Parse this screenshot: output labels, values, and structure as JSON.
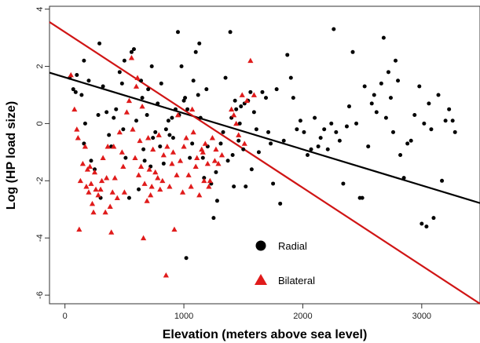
{
  "chart_data": {
    "type": "scatter",
    "xlabel": "Elevation (meters above sea level)",
    "ylabel": "Log (HP load size)",
    "xlim": [
      -130,
      3490
    ],
    "ylim": [
      -6.3,
      4.1
    ],
    "x_ticks": [
      0,
      1000,
      2000,
      3000
    ],
    "y_ticks": [
      -6,
      -4,
      -2,
      0,
      2,
      4
    ],
    "grid": false,
    "legend_position": "bottom-center",
    "series": [
      {
        "name": "Radial",
        "marker": "circle",
        "color": "#000000",
        "points": [
          [
            40,
            1.6
          ],
          [
            70,
            1.2
          ],
          [
            100,
            1.7
          ],
          [
            90,
            1.1
          ],
          [
            160,
            2.2
          ],
          [
            140,
            1.0
          ],
          [
            200,
            1.5
          ],
          [
            170,
            0.0
          ],
          [
            160,
            -0.7
          ],
          [
            220,
            -1.3
          ],
          [
            250,
            -1.6
          ],
          [
            280,
            0.3
          ],
          [
            290,
            2.8
          ],
          [
            300,
            -2.6
          ],
          [
            320,
            1.3
          ],
          [
            350,
            0.4
          ],
          [
            370,
            -0.4
          ],
          [
            390,
            -0.8
          ],
          [
            410,
            0.2
          ],
          [
            430,
            0.5
          ],
          [
            460,
            1.8
          ],
          [
            480,
            1.4
          ],
          [
            490,
            -0.2
          ],
          [
            500,
            2.2
          ],
          [
            510,
            -1.2
          ],
          [
            540,
            -2.6
          ],
          [
            560,
            2.5
          ],
          [
            580,
            2.6
          ],
          [
            600,
            0.1
          ],
          [
            620,
            -2.3
          ],
          [
            640,
            1.5
          ],
          [
            650,
            0.9
          ],
          [
            660,
            -0.9
          ],
          [
            670,
            -1.3
          ],
          [
            690,
            0.3
          ],
          [
            700,
            1.2
          ],
          [
            720,
            -1.5
          ],
          [
            730,
            2.0
          ],
          [
            740,
            -0.5
          ],
          [
            760,
            -0.3
          ],
          [
            780,
            0.7
          ],
          [
            800,
            -0.8
          ],
          [
            810,
            1.4
          ],
          [
            830,
            -1.4
          ],
          [
            850,
            -0.2
          ],
          [
            870,
            0.1
          ],
          [
            880,
            -0.4
          ],
          [
            900,
            0.2
          ],
          [
            910,
            -0.5
          ],
          [
            930,
            0.5
          ],
          [
            950,
            3.2
          ],
          [
            960,
            0.3
          ],
          [
            980,
            2.0
          ],
          [
            1000,
            0.8
          ],
          [
            1010,
            0.9
          ],
          [
            1020,
            -4.7
          ],
          [
            1030,
            0.5
          ],
          [
            1050,
            -1.2
          ],
          [
            1070,
            -0.7
          ],
          [
            1080,
            1.5
          ],
          [
            1100,
            2.5
          ],
          [
            1120,
            1.0
          ],
          [
            1130,
            2.8
          ],
          [
            1140,
            0.2
          ],
          [
            1160,
            -1.2
          ],
          [
            1170,
            -1.9
          ],
          [
            1190,
            1.2
          ],
          [
            1200,
            -0.8
          ],
          [
            1230,
            -2.1
          ],
          [
            1250,
            -3.3
          ],
          [
            1270,
            -1.7
          ],
          [
            1280,
            -2.7
          ],
          [
            1310,
            -0.7
          ],
          [
            1330,
            -0.3
          ],
          [
            1350,
            1.6
          ],
          [
            1370,
            -1.3
          ],
          [
            1390,
            3.2
          ],
          [
            1400,
            0.2
          ],
          [
            1410,
            -1.1
          ],
          [
            1420,
            -2.2
          ],
          [
            1430,
            0.8
          ],
          [
            1440,
            0.5
          ],
          [
            1460,
            -0.6
          ],
          [
            1470,
            0.0
          ],
          [
            1480,
            0.6
          ],
          [
            1500,
            -0.9
          ],
          [
            1510,
            0.7
          ],
          [
            1520,
            -2.2
          ],
          [
            1540,
            0.8
          ],
          [
            1560,
            1.1
          ],
          [
            1570,
            -1.6
          ],
          [
            1590,
            0.4
          ],
          [
            1610,
            -0.2
          ],
          [
            1630,
            -1.0
          ],
          [
            1660,
            1.1
          ],
          [
            1690,
            0.9
          ],
          [
            1710,
            -0.3
          ],
          [
            1730,
            -0.7
          ],
          [
            1750,
            -2.1
          ],
          [
            1780,
            1.2
          ],
          [
            1810,
            -2.8
          ],
          [
            1840,
            -0.6
          ],
          [
            1870,
            2.4
          ],
          [
            1900,
            1.6
          ],
          [
            1920,
            0.9
          ],
          [
            1950,
            -0.2
          ],
          [
            1980,
            0.1
          ],
          [
            2010,
            -0.3
          ],
          [
            2040,
            -1.1
          ],
          [
            2070,
            -0.9
          ],
          [
            2100,
            0.2
          ],
          [
            2130,
            -0.8
          ],
          [
            2150,
            -0.5
          ],
          [
            2180,
            -0.2
          ],
          [
            2210,
            -0.9
          ],
          [
            2240,
            0.0
          ],
          [
            2260,
            3.3
          ],
          [
            2280,
            -0.3
          ],
          [
            2310,
            -0.6
          ],
          [
            2340,
            -2.1
          ],
          [
            2370,
            -0.1
          ],
          [
            2390,
            0.6
          ],
          [
            2420,
            2.5
          ],
          [
            2450,
            0.0
          ],
          [
            2480,
            -2.6
          ],
          [
            2500,
            -2.6
          ],
          [
            2520,
            1.3
          ],
          [
            2550,
            -0.8
          ],
          [
            2580,
            0.7
          ],
          [
            2600,
            1.0
          ],
          [
            2620,
            0.4
          ],
          [
            2660,
            1.4
          ],
          [
            2680,
            3.0
          ],
          [
            2700,
            0.2
          ],
          [
            2720,
            1.8
          ],
          [
            2740,
            0.9
          ],
          [
            2760,
            -0.3
          ],
          [
            2780,
            2.2
          ],
          [
            2800,
            1.5
          ],
          [
            2820,
            -1.1
          ],
          [
            2850,
            -1.9
          ],
          [
            2880,
            -0.7
          ],
          [
            2910,
            -0.6
          ],
          [
            2940,
            0.3
          ],
          [
            2980,
            1.3
          ],
          [
            3000,
            -3.5
          ],
          [
            3020,
            0.0
          ],
          [
            3040,
            -3.6
          ],
          [
            3060,
            0.7
          ],
          [
            3080,
            -0.2
          ],
          [
            3100,
            -3.3
          ],
          [
            3140,
            1.0
          ],
          [
            3170,
            -2.0
          ],
          [
            3200,
            0.1
          ],
          [
            3230,
            0.5
          ],
          [
            3260,
            0.1
          ],
          [
            3280,
            -0.3
          ]
        ]
      },
      {
        "name": "Bilateral",
        "marker": "triangle",
        "color": "#e01b1b",
        "points": [
          [
            50,
            1.7
          ],
          [
            80,
            0.5
          ],
          [
            100,
            -0.2
          ],
          [
            110,
            -0.5
          ],
          [
            120,
            -3.7
          ],
          [
            130,
            -2.0
          ],
          [
            150,
            -1.4
          ],
          [
            170,
            -0.8
          ],
          [
            180,
            -2.2
          ],
          [
            190,
            -1.6
          ],
          [
            200,
            -2.4
          ],
          [
            210,
            -1.5
          ],
          [
            220,
            -2.1
          ],
          [
            230,
            -2.8
          ],
          [
            240,
            -3.1
          ],
          [
            250,
            -1.7
          ],
          [
            260,
            -2.3
          ],
          [
            280,
            -2.5
          ],
          [
            300,
            -2.3
          ],
          [
            310,
            -2.0
          ],
          [
            320,
            -1.2
          ],
          [
            340,
            -3.1
          ],
          [
            350,
            -1.9
          ],
          [
            360,
            -0.8
          ],
          [
            380,
            -2.9
          ],
          [
            390,
            -3.8
          ],
          [
            400,
            -2.4
          ],
          [
            410,
            -0.8
          ],
          [
            420,
            -1.9
          ],
          [
            440,
            -2.6
          ],
          [
            460,
            -0.3
          ],
          [
            480,
            -1.0
          ],
          [
            490,
            -1.5
          ],
          [
            500,
            -2.4
          ],
          [
            520,
            0.4
          ],
          [
            540,
            0.8
          ],
          [
            560,
            2.3
          ],
          [
            570,
            -0.2
          ],
          [
            590,
            -1.2
          ],
          [
            600,
            1.3
          ],
          [
            610,
            1.6
          ],
          [
            620,
            -1.8
          ],
          [
            630,
            -0.6
          ],
          [
            640,
            -1.5
          ],
          [
            650,
            0.6
          ],
          [
            660,
            -4.0
          ],
          [
            670,
            -2.1
          ],
          [
            690,
            -2.7
          ],
          [
            700,
            -0.5
          ],
          [
            710,
            -1.6
          ],
          [
            720,
            -2.5
          ],
          [
            730,
            -2.2
          ],
          [
            740,
            -0.9
          ],
          [
            760,
            -1.7
          ],
          [
            780,
            -1.9
          ],
          [
            790,
            -0.4
          ],
          [
            800,
            -2.3
          ],
          [
            820,
            -2.0
          ],
          [
            830,
            -1.1
          ],
          [
            850,
            -5.3
          ],
          [
            860,
            -0.8
          ],
          [
            880,
            -2.2
          ],
          [
            900,
            -1.4
          ],
          [
            910,
            -1.0
          ],
          [
            920,
            -3.7
          ],
          [
            940,
            -1.8
          ],
          [
            950,
            0.3
          ],
          [
            970,
            -1.3
          ],
          [
            990,
            -2.4
          ],
          [
            1000,
            -0.8
          ],
          [
            1020,
            -0.5
          ],
          [
            1040,
            -1.8
          ],
          [
            1060,
            -2.2
          ],
          [
            1070,
            0.5
          ],
          [
            1080,
            -0.3
          ],
          [
            1100,
            -1.5
          ],
          [
            1110,
            -1.2
          ],
          [
            1130,
            -2.5
          ],
          [
            1150,
            -0.9
          ],
          [
            1160,
            -1.0
          ],
          [
            1170,
            -2.0
          ],
          [
            1180,
            -0.7
          ],
          [
            1200,
            -1.4
          ],
          [
            1210,
            -2.2
          ],
          [
            1220,
            -2.0
          ],
          [
            1240,
            -0.5
          ],
          [
            1260,
            -1.3
          ],
          [
            1270,
            -0.9
          ],
          [
            1290,
            -1.4
          ],
          [
            1320,
            -1.1
          ],
          [
            1400,
            0.5
          ],
          [
            1420,
            0.3
          ],
          [
            1440,
            0.0
          ],
          [
            1460,
            -0.4
          ],
          [
            1490,
            1.0
          ],
          [
            1510,
            -0.7
          ],
          [
            1530,
            0.8
          ],
          [
            1560,
            2.2
          ],
          [
            1590,
            1.0
          ]
        ]
      }
    ],
    "fit_lines": [
      {
        "series": "Radial",
        "color": "#000000",
        "x": [
          -130,
          3490
        ],
        "y": [
          1.78,
          -2.78
        ]
      },
      {
        "series": "Bilateral",
        "color": "#d01515",
        "x": [
          -130,
          3490
        ],
        "y": [
          3.55,
          -6.3
        ]
      }
    ],
    "legend": [
      {
        "label": "Radial",
        "marker": "circle",
        "color": "#000000"
      },
      {
        "label": "Bilateral",
        "marker": "triangle",
        "color": "#e01b1b"
      }
    ]
  }
}
